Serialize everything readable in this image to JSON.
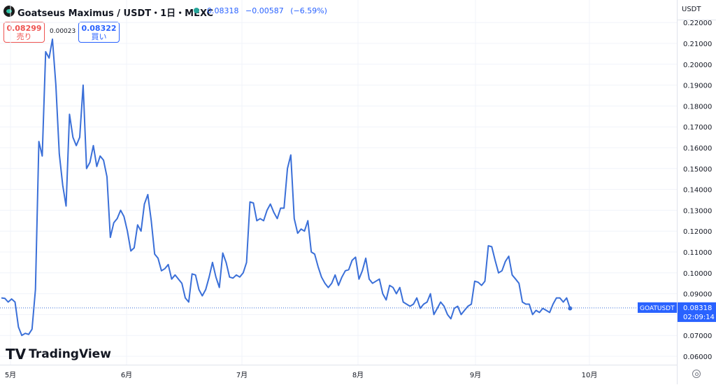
{
  "header": {
    "title": "Goatseus Maximus / USDT・1日・MEXC",
    "last_price": "0.08318",
    "change": "−0.00587",
    "change_pct": "(−6.59%)"
  },
  "trade": {
    "sell_price": "0.08299",
    "sell_label": "売り",
    "spread": "0.00023",
    "buy_price": "0.08322",
    "buy_label": "買い"
  },
  "currency": "USDT",
  "brand": "TradingView",
  "price_label": {
    "symbol": "GOATUSDT",
    "price": "0.08318",
    "countdown": "02:09:14"
  },
  "colors": {
    "line": "#3a6fd8",
    "accent": "#2962ff",
    "sell": "#ef5350",
    "buy": "#2962ff",
    "up_dot": "#26a69a"
  },
  "chart_data": {
    "type": "line",
    "x_ticks": [
      "5月",
      "6月",
      "7月",
      "8月",
      "9月",
      "10月"
    ],
    "y_ticks": [
      "0.06000",
      "0.07000",
      "0.08000",
      "0.09000",
      "0.10000",
      "0.11000",
      "0.12000",
      "0.13000",
      "0.14000",
      "0.15000",
      "0.16000",
      "0.17000",
      "0.18000",
      "0.19000",
      "0.20000",
      "0.21000",
      "0.22000"
    ],
    "ylim": [
      0.057,
      0.222
    ],
    "last_value": 0.08318,
    "series": [
      {
        "values": [
          0.088,
          0.0878,
          0.086,
          0.0875,
          0.086,
          0.074,
          0.07,
          0.071,
          0.0705,
          0.073,
          0.092,
          0.163,
          0.156,
          0.206,
          0.203,
          0.212,
          0.19,
          0.157,
          0.142,
          0.132,
          0.176,
          0.165,
          0.161,
          0.165,
          0.19,
          0.15,
          0.153,
          0.161,
          0.151,
          0.156,
          0.154,
          0.146,
          0.117,
          0.124,
          0.126,
          0.13,
          0.127,
          0.12,
          0.1105,
          0.112,
          0.123,
          0.12,
          0.133,
          0.1375,
          0.125,
          0.109,
          0.107,
          0.101,
          0.102,
          0.104,
          0.097,
          0.099,
          0.097,
          0.095,
          0.088,
          0.086,
          0.0995,
          0.099,
          0.092,
          0.089,
          0.092,
          0.098,
          0.105,
          0.098,
          0.093,
          0.1095,
          0.105,
          0.098,
          0.0975,
          0.099,
          0.098,
          0.1,
          0.105,
          0.134,
          0.1335,
          0.125,
          0.126,
          0.125,
          0.13,
          0.133,
          0.129,
          0.126,
          0.131,
          0.131,
          0.15,
          0.1565,
          0.126,
          0.119,
          0.121,
          0.12,
          0.125,
          0.11,
          0.109,
          0.103,
          0.098,
          0.095,
          0.093,
          0.095,
          0.099,
          0.094,
          0.098,
          0.101,
          0.1015,
          0.106,
          0.1075,
          0.097,
          0.101,
          0.107,
          0.097,
          0.095,
          0.096,
          0.097,
          0.09,
          0.087,
          0.094,
          0.093,
          0.09,
          0.093,
          0.086,
          0.085,
          0.084,
          0.085,
          0.088,
          0.083,
          0.085,
          0.086,
          0.09,
          0.08,
          0.083,
          0.086,
          0.084,
          0.08,
          0.078,
          0.083,
          0.084,
          0.08,
          0.082,
          0.084,
          0.085,
          0.096,
          0.0955,
          0.094,
          0.096,
          0.113,
          0.1125,
          0.106,
          0.1,
          0.101,
          0.1055,
          0.108,
          0.099,
          0.097,
          0.095,
          0.086,
          0.085,
          0.085,
          0.08,
          0.082,
          0.081,
          0.083,
          0.082,
          0.081,
          0.085,
          0.088,
          0.088,
          0.086,
          0.088,
          0.083
        ]
      }
    ]
  }
}
